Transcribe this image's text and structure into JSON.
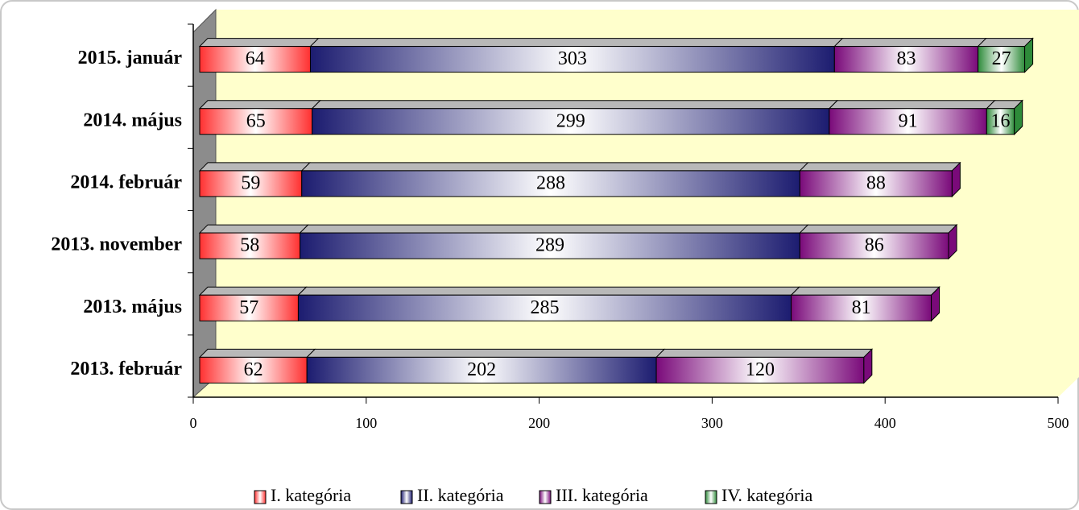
{
  "chart_data": {
    "type": "bar",
    "orientation": "horizontal",
    "stacked": true,
    "three_d": true,
    "categories": [
      "2015. január",
      "2014. május",
      "2014. február",
      "2013. november",
      "2013. május",
      "2013. február"
    ],
    "series": [
      {
        "name": "I. kategória",
        "color": "#ff3030",
        "values": [
          64,
          65,
          59,
          58,
          57,
          62
        ]
      },
      {
        "name": "II. kategória",
        "color": "#1c1c70",
        "values": [
          303,
          299,
          288,
          289,
          285,
          202
        ]
      },
      {
        "name": "III. kategória",
        "color": "#7a0a7a",
        "values": [
          83,
          91,
          88,
          86,
          81,
          120
        ]
      },
      {
        "name": "IV. kategória",
        "color": "#2e8b3a",
        "values": [
          27,
          16,
          null,
          null,
          null,
          null
        ]
      }
    ],
    "xlim": [
      0,
      500
    ],
    "xticks": [
      0,
      100,
      200,
      300,
      400,
      500
    ],
    "legend": "bottom"
  }
}
